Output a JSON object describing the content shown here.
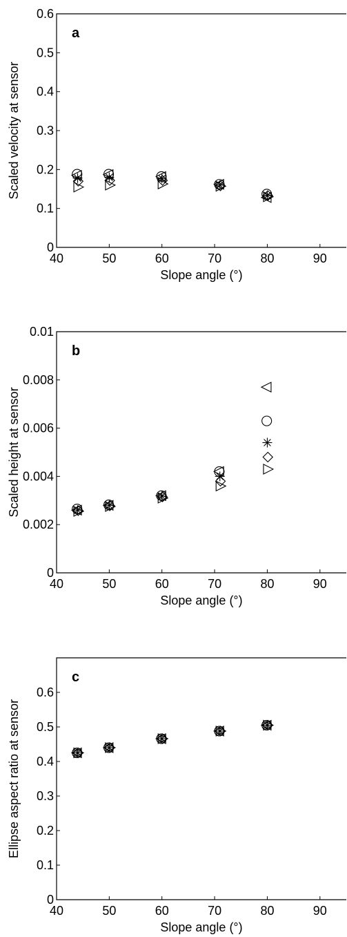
{
  "chart_data": [
    {
      "type": "scatter",
      "panel_label": "a",
      "xlabel": "Slope angle (°)",
      "ylabel": "Scaled velocity at sensor",
      "xlim": [
        40,
        95
      ],
      "ylim": [
        0,
        0.6
      ],
      "x_ticks": [
        40,
        50,
        60,
        70,
        80,
        90
      ],
      "y_ticks": [
        0,
        0.1,
        0.2,
        0.3,
        0.4,
        0.5,
        0.6
      ],
      "x_tick_labels": [
        "40",
        "50",
        "60",
        "70",
        "80",
        "90"
      ],
      "y_tick_labels": [
        "0",
        "0.1",
        "0.2",
        "0.3",
        "0.4",
        "0.5",
        "0.6"
      ],
      "series": [
        {
          "marker": "triangle-left",
          "x": [
            44,
            50,
            60,
            71,
            80
          ],
          "y": [
            0.185,
            0.187,
            0.182,
            0.162,
            0.128
          ]
        },
        {
          "marker": "circle",
          "x": [
            44,
            50,
            60,
            71,
            80
          ],
          "y": [
            0.188,
            0.188,
            0.182,
            0.162,
            0.137
          ]
        },
        {
          "marker": "asterisk",
          "x": [
            44,
            50,
            60,
            71,
            80
          ],
          "y": [
            0.178,
            0.18,
            0.177,
            0.16,
            0.133
          ]
        },
        {
          "marker": "diamond",
          "x": [
            44,
            50,
            60,
            71,
            80
          ],
          "y": [
            0.17,
            0.172,
            0.172,
            0.158,
            0.133
          ]
        },
        {
          "marker": "triangle-right",
          "x": [
            44,
            50,
            60,
            71,
            80
          ],
          "y": [
            0.155,
            0.16,
            0.163,
            0.157,
            0.13
          ]
        }
      ]
    },
    {
      "type": "scatter",
      "panel_label": "b",
      "xlabel": "Slope angle (°)",
      "ylabel": "Scaled height at sensor",
      "xlim": [
        40,
        95
      ],
      "ylim": [
        0,
        0.01
      ],
      "x_ticks": [
        40,
        50,
        60,
        70,
        80,
        90
      ],
      "y_ticks": [
        0,
        0.002,
        0.004,
        0.006,
        0.008,
        0.01
      ],
      "x_tick_labels": [
        "40",
        "50",
        "60",
        "70",
        "80",
        "90"
      ],
      "y_tick_labels": [
        "0",
        "0.002",
        "0.004",
        "0.006",
        "0.008",
        "0.01"
      ],
      "series": [
        {
          "marker": "triangle-left",
          "x": [
            44,
            50,
            60,
            71,
            80
          ],
          "y": [
            0.0026,
            0.0028,
            0.0032,
            0.0042,
            0.0077
          ]
        },
        {
          "marker": "circle",
          "x": [
            44,
            50,
            60,
            71,
            80
          ],
          "y": [
            0.00265,
            0.00282,
            0.0032,
            0.0042,
            0.0063
          ]
        },
        {
          "marker": "asterisk",
          "x": [
            44,
            50,
            60,
            71,
            80
          ],
          "y": [
            0.0026,
            0.0028,
            0.00318,
            0.004,
            0.0054
          ]
        },
        {
          "marker": "diamond",
          "x": [
            44,
            50,
            60,
            71,
            80
          ],
          "y": [
            0.00258,
            0.00278,
            0.00315,
            0.0038,
            0.0048
          ]
        },
        {
          "marker": "triangle-right",
          "x": [
            44,
            50,
            60,
            71,
            80
          ],
          "y": [
            0.00255,
            0.00275,
            0.0031,
            0.0036,
            0.0043
          ]
        }
      ]
    },
    {
      "type": "scatter",
      "panel_label": "c",
      "xlabel": "Slope angle (°)",
      "ylabel": "Ellipse aspect ratio at sensor",
      "xlim": [
        40,
        95
      ],
      "ylim": [
        0,
        0.7
      ],
      "x_ticks": [
        40,
        50,
        60,
        70,
        80,
        90
      ],
      "y_ticks": [
        0,
        0.1,
        0.2,
        0.3,
        0.4,
        0.5,
        0.6
      ],
      "x_tick_labels": [
        "40",
        "50",
        "60",
        "70",
        "80",
        "90"
      ],
      "y_tick_labels": [
        "0",
        "0.1",
        "0.2",
        "0.3",
        "0.4",
        "0.5",
        "0.6"
      ],
      "series": [
        {
          "marker": "triangle-left",
          "x": [
            44,
            50,
            60,
            71,
            80
          ],
          "y": [
            0.425,
            0.44,
            0.466,
            0.488,
            0.505
          ]
        },
        {
          "marker": "circle",
          "x": [
            44,
            50,
            60,
            71,
            80
          ],
          "y": [
            0.425,
            0.44,
            0.466,
            0.488,
            0.505
          ]
        },
        {
          "marker": "asterisk",
          "x": [
            44,
            50,
            60,
            71,
            80
          ],
          "y": [
            0.425,
            0.44,
            0.466,
            0.488,
            0.505
          ]
        },
        {
          "marker": "diamond",
          "x": [
            44,
            50,
            60,
            71,
            80
          ],
          "y": [
            0.425,
            0.44,
            0.466,
            0.488,
            0.505
          ]
        },
        {
          "marker": "triangle-right",
          "x": [
            44,
            50,
            60,
            71,
            80
          ],
          "y": [
            0.425,
            0.44,
            0.466,
            0.488,
            0.505
          ]
        }
      ]
    }
  ]
}
